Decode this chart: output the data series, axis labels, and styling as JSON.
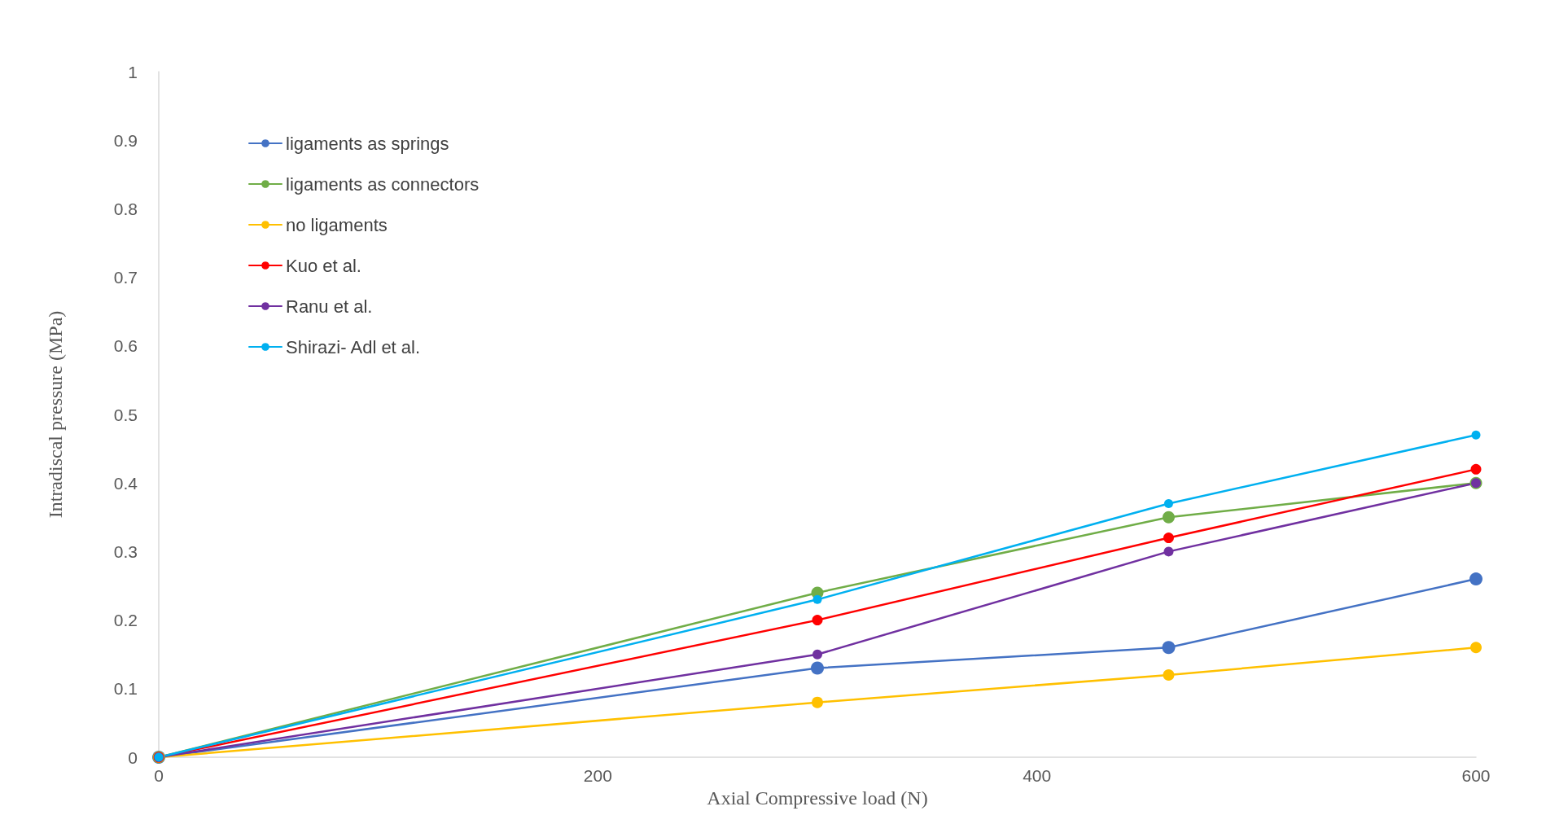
{
  "chart_data": {
    "type": "line",
    "xlabel": "Axial Compressive load (N)",
    "ylabel": "Intradiscal pressure (MPa)",
    "x": [
      0,
      300,
      460,
      600
    ],
    "series": [
      {
        "name": "ligaments as springs",
        "color": "#4472c4",
        "values": [
          0,
          0.13,
          0.16,
          0.26
        ]
      },
      {
        "name": "ligaments as connectors",
        "color": "#70ad47",
        "values": [
          0,
          0.24,
          0.35,
          0.4
        ]
      },
      {
        "name": "no ligaments",
        "color": "#ffc000",
        "values": [
          0,
          0.08,
          0.12,
          0.16
        ]
      },
      {
        "name": "Kuo et al.",
        "color": "#ff0000",
        "values": [
          0,
          0.2,
          0.32,
          0.42
        ]
      },
      {
        "name": "Ranu et al.",
        "color": "#7030a0",
        "values": [
          0,
          0.15,
          0.3,
          0.4
        ]
      },
      {
        "name": "Shirazi- Adl et al.",
        "color": "#00b0f0",
        "values": [
          0,
          0.23,
          0.37,
          0.47
        ]
      }
    ],
    "xlim": [
      0,
      600
    ],
    "xticks": [
      0,
      200,
      400,
      600
    ],
    "ylim": [
      0,
      1
    ],
    "yticks": [
      0,
      0.1,
      0.2,
      0.3,
      0.4,
      0.5,
      0.6,
      0.7,
      0.8,
      0.9,
      1
    ],
    "grid": false,
    "legend": "top left",
    "marker": "circle",
    "line_style": "solid"
  }
}
